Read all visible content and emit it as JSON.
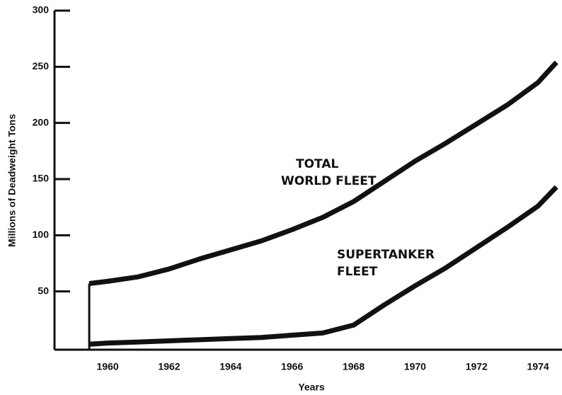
{
  "chart_data": {
    "type": "line",
    "x_label": "Years",
    "y_label": "Millions of Deadweight Tons",
    "annotations": [
      {
        "lines": [
          "TOTAL",
          "WORLD FLEET"
        ]
      },
      {
        "lines": [
          "SUPERTANKER",
          "FLEET"
        ]
      }
    ],
    "x": [
      1959.4,
      1960,
      1961,
      1962,
      1963,
      1964,
      1965,
      1966,
      1967,
      1968,
      1969,
      1970,
      1971,
      1972,
      1973,
      1974,
      1974.6
    ],
    "series": [
      {
        "color": "#111111",
        "values": [
          57,
          59,
          63,
          70,
          79,
          87,
          95,
          105,
          116,
          130,
          148,
          166,
          182,
          199,
          216,
          236,
          254
        ]
      },
      {
        "color": "#111111",
        "values": [
          3,
          4,
          5,
          6,
          7,
          8,
          9,
          11,
          13,
          20,
          38,
          55,
          71,
          89,
          107,
          126,
          143
        ]
      }
    ],
    "xlim": [
      1958.27,
      1974.78
    ],
    "xticks": [
      1960,
      1962,
      1964,
      1966,
      1968,
      1970,
      1972,
      1974
    ],
    "ylim": [
      0,
      300
    ],
    "yticks": [
      50,
      100,
      150,
      200,
      250,
      300
    ]
  }
}
